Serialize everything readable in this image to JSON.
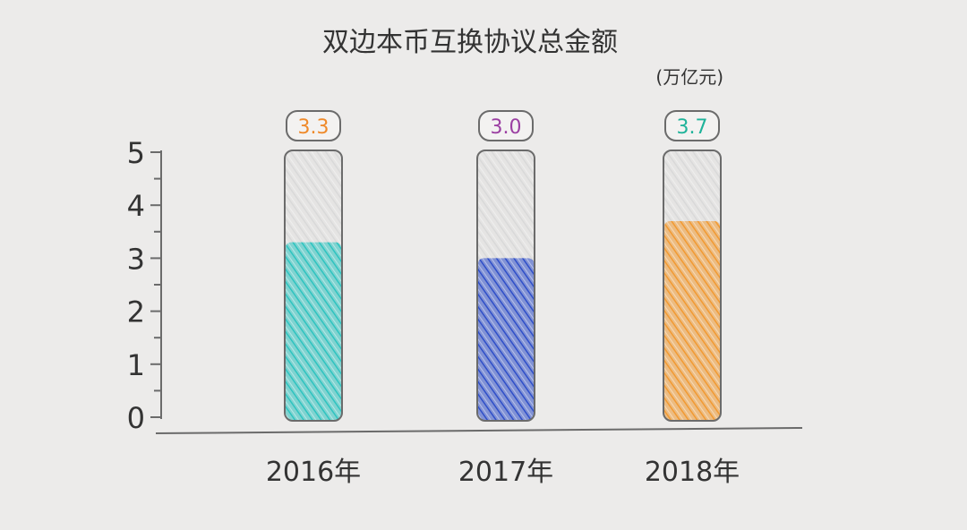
{
  "chart_data": {
    "type": "bar",
    "title": "双边本币互换协议总金额",
    "unit": "(万亿元)",
    "categories": [
      "2016年",
      "2017年",
      "2018年"
    ],
    "values": [
      3.3,
      3.0,
      3.7
    ],
    "value_labels": [
      "3.3",
      "3.0",
      "3.7"
    ],
    "ylim": [
      0,
      5
    ],
    "yticks": [
      "0",
      "1",
      "2",
      "3",
      "4",
      "5"
    ],
    "grid": false,
    "legend": "none",
    "bar_colors": [
      "#2ec4c0",
      "#2f4fc9",
      "#f29a32"
    ],
    "label_colors": [
      "#ef8a2a",
      "#9b3fa2",
      "#1fb39a"
    ],
    "empty_color": "#d9d9d9",
    "outline_color": "#6b6b6b",
    "text_color": "#333333"
  }
}
